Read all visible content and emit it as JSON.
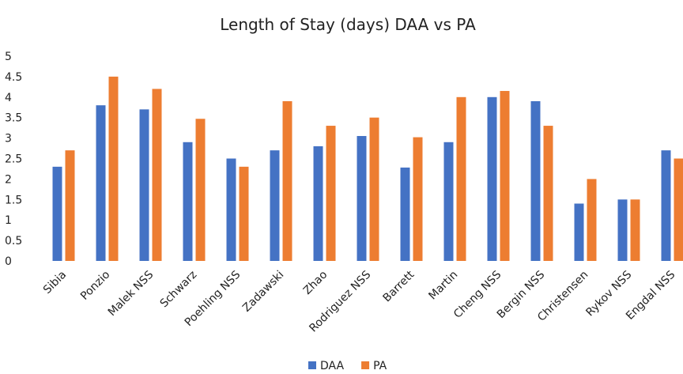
{
  "chart_data": {
    "type": "bar",
    "title": "Length of Stay (days) DAA vs PA",
    "categories": [
      "Sibia",
      "Ponzio",
      "Malek NSS",
      "Schwarz",
      "Poehling NSS",
      "Zadawski",
      "Zhao",
      "Rodriguez NSS",
      "Barrett",
      "Martin",
      "Cheng NSS",
      "Bergin NSS",
      "Christensen",
      "Rykov NSS",
      "Engdal NSS"
    ],
    "series": [
      {
        "name": "DAA",
        "color": "#4472c4",
        "values": [
          2.3,
          3.8,
          3.7,
          2.9,
          2.5,
          2.7,
          2.8,
          3.05,
          2.28,
          2.9,
          4.0,
          3.9,
          1.4,
          1.5,
          2.7
        ]
      },
      {
        "name": "PA",
        "color": "#ed7d31",
        "values": [
          2.7,
          4.5,
          4.2,
          3.47,
          2.3,
          3.9,
          3.3,
          3.5,
          3.02,
          4.0,
          4.15,
          3.3,
          2.0,
          1.5,
          2.5
        ]
      }
    ],
    "ylim": [
      0,
      5
    ],
    "yticks": [
      0,
      0.5,
      1,
      1.5,
      2,
      2.5,
      3,
      3.5,
      4,
      4.5,
      5
    ],
    "grid": false,
    "legend": "bottom"
  }
}
